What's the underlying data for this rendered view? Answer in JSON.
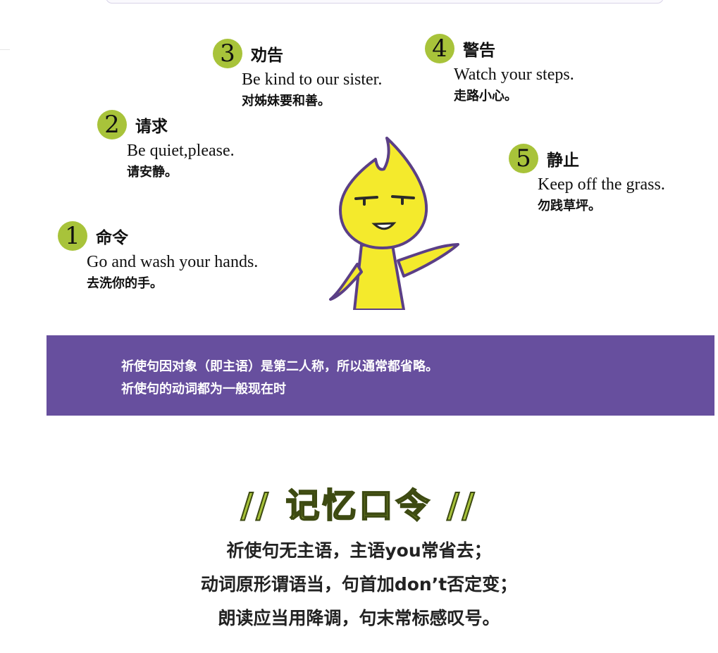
{
  "items": [
    {
      "number": "1",
      "category": "命令",
      "english": "Go and wash your hands.",
      "chinese": "去洗你的手。"
    },
    {
      "number": "2",
      "category": "请求",
      "english": "Be quiet,please.",
      "chinese": "请安静。"
    },
    {
      "number": "3",
      "category": "劝告",
      "english": "Be kind to our sister.",
      "chinese": "对姊妹要和善。"
    },
    {
      "number": "4",
      "category": "警告",
      "english": "Watch your steps.",
      "chinese": "走路小心。"
    },
    {
      "number": "5",
      "category": "静止",
      "english": "Keep off the grass.",
      "chinese": "勿践草坪。"
    }
  ],
  "info_band": {
    "line1": "祈使句因对象（即主语）是第二人称，所以通常都省略。",
    "line2": "祈使句的动词都为一般现在时"
  },
  "memory": {
    "title": "// 记忆口令 //",
    "lines": [
      "祈使句无主语，主语you常省去；",
      "动词原形谓语当，句首加don’t否定变；",
      "朗读应当用降调，句末常标感叹号。"
    ]
  },
  "colors": {
    "accent_green": "#a8c33a",
    "band_purple": "#674f9e",
    "mascot_yellow": "#f4ea2c",
    "mascot_outline": "#5b3f86"
  }
}
